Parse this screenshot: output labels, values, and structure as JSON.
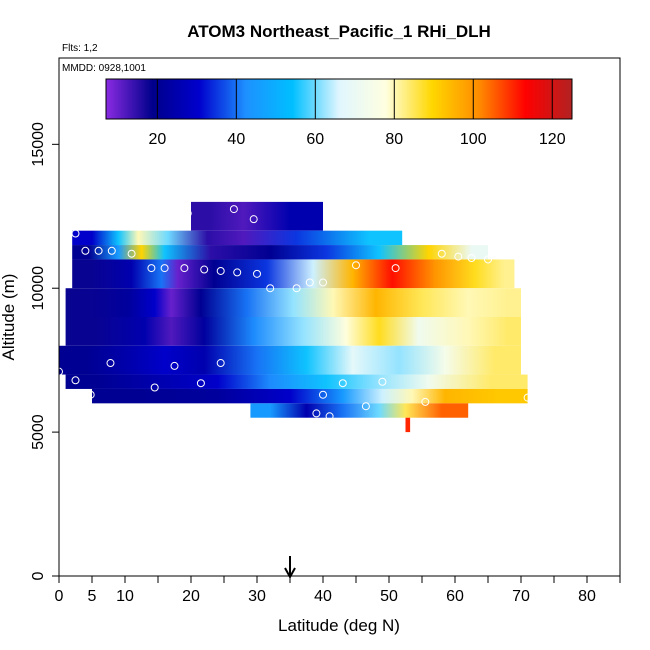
{
  "chart_data": {
    "type": "heatmap",
    "title": "ATOM3 Northeast_Pacific_1 RHi_DLH",
    "flights_label": "Flts: 1,2",
    "mmdd_label": "MMDD: 0928,1001",
    "xlabel": "Latitude (deg N)",
    "ylabel": "Altitude (m)",
    "xlim": [
      0,
      85
    ],
    "ylim": [
      0,
      18000
    ],
    "x_ticks": [
      0,
      5,
      10,
      20,
      30,
      40,
      50,
      60,
      70,
      80
    ],
    "x_minor_ticks": [
      15,
      25,
      35,
      45,
      55,
      65,
      75,
      85
    ],
    "y_ticks": [
      0,
      5000,
      10000,
      15000
    ],
    "colorbar": {
      "range": [
        7,
        125
      ],
      "ticks": [
        20,
        40,
        60,
        80,
        100,
        120
      ],
      "colors": [
        "#8a2be2",
        "#00008b",
        "#0000cd",
        "#1e90ff",
        "#00bfff",
        "#e0f6ff",
        "#ffffe0",
        "#ffd700",
        "#ff8c00",
        "#ff0000",
        "#b22222"
      ]
    },
    "marker_latitude": 35,
    "bands": [
      {
        "alt": [
          12000,
          13000
        ],
        "segments": [
          [
            20,
            26,
            15
          ],
          [
            26,
            30,
            12
          ],
          [
            30,
            40,
            25
          ]
        ]
      },
      {
        "alt": [
          11500,
          12000
        ],
        "segments": [
          [
            2,
            8,
            30
          ],
          [
            8,
            10,
            55
          ],
          [
            10,
            14,
            80
          ],
          [
            14,
            19,
            60
          ],
          [
            19,
            26,
            15
          ],
          [
            26,
            30,
            12
          ],
          [
            30,
            42,
            35
          ],
          [
            42,
            52,
            55
          ]
        ]
      },
      {
        "alt": [
          11000,
          11500
        ],
        "segments": [
          [
            2,
            7,
            20
          ],
          [
            7,
            11,
            45
          ],
          [
            11,
            14,
            90
          ],
          [
            14,
            18,
            55
          ],
          [
            18,
            28,
            15
          ],
          [
            28,
            36,
            20
          ],
          [
            36,
            45,
            35
          ],
          [
            45,
            52,
            55
          ],
          [
            52,
            60,
            90
          ],
          [
            60,
            65,
            70
          ]
        ]
      },
      {
        "alt": [
          10000,
          11000
        ],
        "segments": [
          [
            2,
            8,
            18
          ],
          [
            8,
            14,
            25
          ],
          [
            14,
            17,
            40
          ],
          [
            17,
            19,
            10
          ],
          [
            19,
            28,
            20
          ],
          [
            28,
            35,
            35
          ],
          [
            35,
            42,
            65
          ],
          [
            42,
            47,
            95
          ],
          [
            47,
            54,
            112
          ],
          [
            54,
            60,
            100
          ],
          [
            60,
            66,
            88
          ],
          [
            66,
            69,
            82
          ]
        ]
      },
      {
        "alt": [
          9000,
          10000
        ],
        "segments": [
          [
            1,
            8,
            18
          ],
          [
            8,
            13,
            22
          ],
          [
            13,
            16,
            30
          ],
          [
            16,
            18,
            10
          ],
          [
            18,
            25,
            20
          ],
          [
            25,
            32,
            40
          ],
          [
            32,
            39,
            62
          ],
          [
            39,
            44,
            80
          ],
          [
            44,
            52,
            95
          ],
          [
            52,
            58,
            85
          ],
          [
            58,
            66,
            80
          ],
          [
            66,
            70,
            82
          ]
        ]
      },
      {
        "alt": [
          8000,
          9000
        ],
        "segments": [
          [
            1,
            10,
            18
          ],
          [
            10,
            16,
            25
          ],
          [
            16,
            18,
            12
          ],
          [
            18,
            26,
            22
          ],
          [
            26,
            33,
            42
          ],
          [
            33,
            41,
            62
          ],
          [
            41,
            46,
            78
          ],
          [
            46,
            51,
            88
          ],
          [
            51,
            58,
            72
          ],
          [
            58,
            66,
            80
          ],
          [
            66,
            70,
            84
          ]
        ]
      },
      {
        "alt": [
          7000,
          8000
        ],
        "segments": [
          [
            0,
            8,
            20
          ],
          [
            8,
            14,
            25
          ],
          [
            14,
            18,
            30
          ],
          [
            18,
            26,
            25
          ],
          [
            26,
            34,
            40
          ],
          [
            34,
            41,
            55
          ],
          [
            41,
            48,
            68
          ],
          [
            48,
            55,
            62
          ],
          [
            55,
            62,
            74
          ],
          [
            62,
            70,
            84
          ]
        ]
      },
      {
        "alt": [
          6500,
          7000
        ],
        "segments": [
          [
            1,
            10,
            20
          ],
          [
            10,
            20,
            25
          ],
          [
            20,
            28,
            30
          ],
          [
            28,
            36,
            42
          ],
          [
            36,
            45,
            55
          ],
          [
            45,
            52,
            62
          ],
          [
            52,
            60,
            72
          ],
          [
            60,
            71,
            84
          ]
        ]
      },
      {
        "alt": [
          6000,
          6500
        ],
        "segments": [
          [
            5,
            18,
            20
          ],
          [
            18,
            30,
            22
          ],
          [
            30,
            40,
            30
          ],
          [
            40,
            46,
            45
          ],
          [
            46,
            52,
            65
          ],
          [
            52,
            55,
            80
          ],
          [
            55,
            62,
            95
          ],
          [
            62,
            71,
            92
          ]
        ]
      },
      {
        "alt": [
          5500,
          6000
        ],
        "segments": [
          [
            29,
            35,
            45
          ],
          [
            35,
            40,
            25
          ],
          [
            40,
            46,
            40
          ],
          [
            46,
            51,
            60
          ],
          [
            51,
            54,
            85
          ],
          [
            54,
            62,
            105
          ]
        ]
      },
      {
        "alt": [
          5000,
          5500
        ],
        "segments": [
          [
            52.5,
            53.2,
            110
          ]
        ]
      }
    ],
    "points": [
      [
        2.5,
        11900
      ],
      [
        4,
        11300
      ],
      [
        6,
        11300
      ],
      [
        8,
        11300
      ],
      [
        11,
        11200
      ],
      [
        14,
        10700
      ],
      [
        16,
        10700
      ],
      [
        19,
        10700
      ],
      [
        22,
        10650
      ],
      [
        24.5,
        10600
      ],
      [
        27,
        10550
      ],
      [
        30,
        10500
      ],
      [
        32,
        10000
      ],
      [
        19.5,
        12600
      ],
      [
        26.5,
        12750
      ],
      [
        29.5,
        12400
      ],
      [
        36,
        10000
      ],
      [
        38,
        10200
      ],
      [
        40,
        10200
      ],
      [
        45,
        10800
      ],
      [
        51,
        10700
      ],
      [
        58,
        11200
      ],
      [
        60.5,
        11100
      ],
      [
        62.5,
        11050
      ],
      [
        65,
        11000
      ],
      [
        0,
        7100
      ],
      [
        2.5,
        6800
      ],
      [
        4.8,
        6300
      ],
      [
        7.8,
        7400
      ],
      [
        14.5,
        6550
      ],
      [
        17.5,
        7300
      ],
      [
        21.5,
        6700
      ],
      [
        24.5,
        7400
      ],
      [
        39,
        5650
      ],
      [
        40,
        6300
      ],
      [
        41,
        5550
      ],
      [
        43,
        6700
      ],
      [
        46.5,
        5900
      ],
      [
        49,
        6750
      ],
      [
        55.5,
        6050
      ],
      [
        71,
        6200
      ]
    ]
  }
}
